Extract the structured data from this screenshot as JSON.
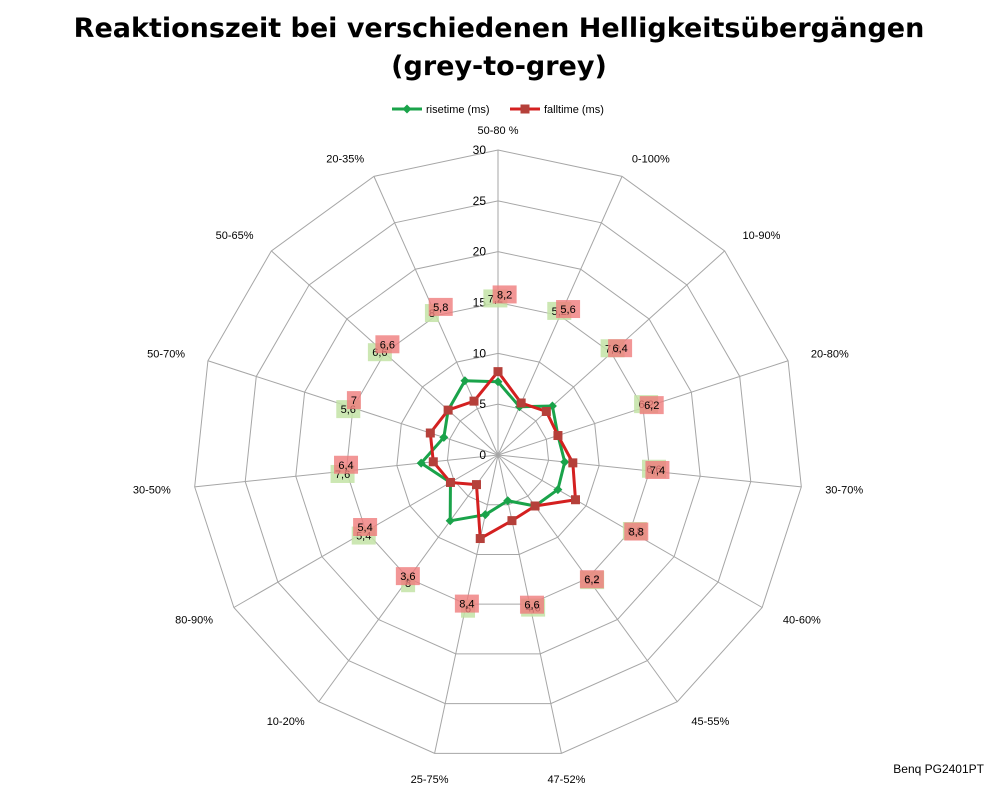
{
  "title_lines": [
    "Reaktionszeit bei verschiedenen Helligkeitsübergängen",
    "(grey-to-grey)"
  ],
  "source_note": "Benq PG2401PT",
  "colors": {
    "rise": "#1aa34a",
    "fall": "#d42020",
    "fall_marker": "#b5403a",
    "rise_label_bg": "#c3e3a6",
    "fall_label_bg": "#ef7c7c",
    "fall_label_bg_alt": "#e0664e",
    "grid": "#a6a6a6"
  },
  "chart_data": {
    "type": "radar",
    "title": "Reaktionszeit bei verschiedenen Helligkeitsübergängen (grey-to-grey)",
    "categories": [
      "50-80 %",
      "0-100%",
      "10-90%",
      "20-80%",
      "30-70%",
      "40-60%",
      "45-55%",
      "47-52%",
      "25-75%",
      "10-20%",
      "80-90%",
      "30-50%",
      "50-70%",
      "50-65%",
      "20-35%"
    ],
    "rlim": [
      0,
      30
    ],
    "ticks": [
      0,
      5,
      10,
      15,
      20,
      25,
      30
    ],
    "tick_labels": [
      "0",
      "5",
      "10",
      "15",
      "20",
      "25",
      "30"
    ],
    "grid": true,
    "legend_position": "top",
    "series": [
      {
        "name": "risetime (ms)",
        "values": [
          7.2,
          5.2,
          7.2,
          6.2,
          6.6,
          6.8,
          6.2,
          4.6,
          6,
          8,
          5.4,
          7.6,
          5.6,
          6.6,
          8
        ],
        "labels": [
          "7,2",
          "5,2",
          "7,2",
          "6,2",
          "6,6",
          "6,8",
          "6,2",
          "4,6",
          "6",
          "8",
          "5,4",
          "7,6",
          "5,6",
          "6,6",
          "8"
        ]
      },
      {
        "name": "falltime (ms)",
        "values": [
          8.2,
          5.6,
          6.4,
          6.2,
          7.4,
          8.8,
          6.2,
          6.6,
          8.4,
          3.6,
          5.4,
          6.4,
          7,
          6.6,
          5.8
        ],
        "labels": [
          "8,2",
          "5,6",
          "6,4",
          "6,2",
          "7,4",
          "8,8",
          "6,2",
          "6,6",
          "8,4",
          "3,6",
          "5,4",
          "6,4",
          "7",
          "6,6",
          "5,8"
        ]
      }
    ]
  }
}
